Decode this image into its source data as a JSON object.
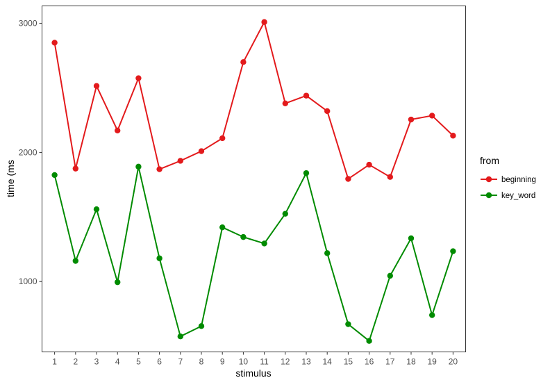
{
  "chart_data": {
    "type": "line",
    "xlabel": "stimulus",
    "ylabel": "time (ms",
    "x": [
      1,
      2,
      3,
      4,
      5,
      6,
      7,
      8,
      9,
      10,
      11,
      12,
      13,
      14,
      15,
      16,
      17,
      18,
      19,
      20
    ],
    "x_ticks": [
      "1",
      "2",
      "3",
      "4",
      "5",
      "6",
      "7",
      "8",
      "9",
      "10",
      "11",
      "12",
      "13",
      "14",
      "15",
      "16",
      "17",
      "18",
      "19",
      "20"
    ],
    "y_ticks": [
      1000,
      2000,
      3000
    ],
    "y_tick_labels": [
      "1000",
      "2000",
      "3000"
    ],
    "xlim": [
      0.4,
      20.6
    ],
    "ylim": [
      455,
      3135
    ],
    "grid": false,
    "legend": {
      "title": "from",
      "position": "right"
    },
    "series": [
      {
        "name": "beginning",
        "color": "#e31a1c",
        "values": [
          2850,
          1875,
          2515,
          2170,
          2575,
          1870,
          1935,
          2010,
          2110,
          2700,
          3010,
          2380,
          2440,
          2320,
          1795,
          1905,
          1810,
          2255,
          2285,
          2130
        ]
      },
      {
        "name": "key_word",
        "color": "#008b00",
        "values": [
          1825,
          1160,
          1560,
          995,
          1890,
          1180,
          575,
          655,
          1420,
          1345,
          1295,
          1525,
          1840,
          1220,
          670,
          540,
          1045,
          1335,
          740,
          1235
        ]
      }
    ]
  }
}
